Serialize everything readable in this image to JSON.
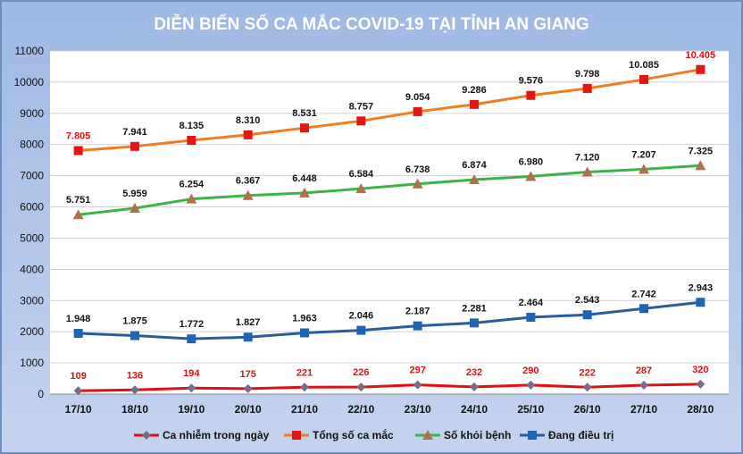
{
  "chart_data": {
    "type": "line",
    "title": "DIỄN BIẾN SỐ CA MẮC COVID-19 TẠI TỈNH AN GIANG",
    "xlabel": "",
    "ylabel": "",
    "ylim": [
      0,
      11000
    ],
    "yticks": [
      0,
      1000,
      2000,
      3000,
      4000,
      5000,
      6000,
      7000,
      8000,
      9000,
      10000,
      11000
    ],
    "grid": true,
    "legend_position": "bottom",
    "categories": [
      "17/10",
      "18/10",
      "19/10",
      "20/10",
      "21/10",
      "22/10",
      "23/10",
      "24/10",
      "25/10",
      "26/10",
      "27/10",
      "28/10"
    ],
    "series": [
      {
        "name": "Ca nhiễm trong ngày",
        "color": "#e01010",
        "marker": "diamond",
        "marker_color": "#7b6a88",
        "label_color": "#e01010",
        "label_position": "above",
        "values": [
          109,
          136,
          194,
          175,
          221,
          226,
          297,
          232,
          290,
          222,
          287,
          320
        ],
        "labels": [
          "109",
          "136",
          "194",
          "175",
          "221",
          "226",
          "297",
          "232",
          "290",
          "222",
          "287",
          "320"
        ]
      },
      {
        "name": "Tổng số ca mắc",
        "color": "#ef7d22",
        "marker": "square",
        "marker_color": "#e61515",
        "label_color": "#111111",
        "label_position": "above",
        "values": [
          7805,
          7941,
          8135,
          8310,
          8531,
          8757,
          9054,
          9286,
          9576,
          9798,
          10085,
          10405
        ],
        "labels": [
          "7.805",
          "7.941",
          "8.135",
          "8.310",
          "8.531",
          "8.757",
          "9.054",
          "9.286",
          "9.576",
          "9.798",
          "10.085",
          "10.405"
        ],
        "label_colors_override": {
          "0": "#e01010",
          "11": "#e01010"
        }
      },
      {
        "name": "Số khỏi bệnh",
        "color": "#3cb34a",
        "marker": "triangle",
        "marker_color": "#b0704a",
        "label_color": "#111111",
        "label_position": "above",
        "values": [
          5751,
          5959,
          6254,
          6367,
          6448,
          6584,
          6738,
          6874,
          6980,
          7120,
          7207,
          7325
        ],
        "labels": [
          "5.751",
          "5.959",
          "6.254",
          "6.367",
          "6.448",
          "6.584",
          "6.738",
          "6.874",
          "6.980",
          "7.120",
          "7.207",
          "7.325"
        ]
      },
      {
        "name": "Đang điều trị",
        "color": "#2a5c9a",
        "marker": "square",
        "marker_color": "#1f64b4",
        "label_color": "#111111",
        "label_position": "above",
        "values": [
          1948,
          1875,
          1772,
          1827,
          1963,
          2046,
          2187,
          2281,
          2464,
          2543,
          2742,
          2943
        ],
        "labels": [
          "1.948",
          "1.875",
          "1.772",
          "1.827",
          "1.963",
          "2.046",
          "2.187",
          "2.281",
          "2.464",
          "2.543",
          "2.742",
          "2.943"
        ]
      }
    ],
    "colors": {
      "title": "#ffffff",
      "frame": "#6b8fbf",
      "background_top": "#9fb9e3",
      "background_bottom": "#c4d3ef",
      "plot_background": "#ffffff",
      "grid": "#d0d0d0",
      "axis_text": "#111111"
    }
  }
}
